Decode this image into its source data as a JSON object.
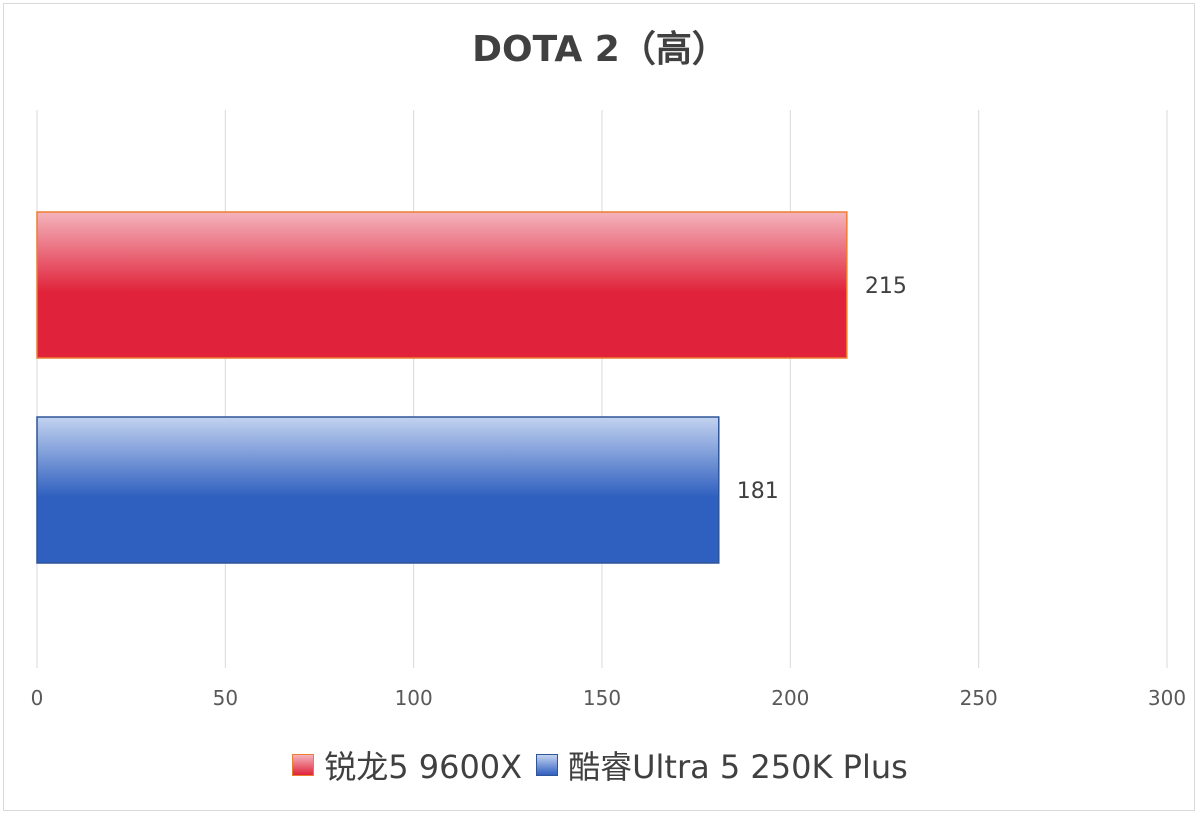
{
  "chart_data": {
    "type": "bar",
    "orientation": "horizontal",
    "title": "DOTA 2（高）",
    "xlim": [
      0,
      300
    ],
    "xticks": [
      "0",
      "50",
      "100",
      "150",
      "200",
      "250",
      "300"
    ],
    "grid": "vertical",
    "legend_position": "bottom",
    "series": [
      {
        "name": "锐龙5 9600X",
        "value": 215,
        "label": "215",
        "color": "#e0233a",
        "light": "#f4b4bd",
        "border": "#ed7d31"
      },
      {
        "name": "酷睿Ultra 5 250K Plus",
        "value": 181,
        "label": "181",
        "color": "#2f5fbf",
        "light": "#c3d3f0",
        "border": "#2f5597"
      }
    ]
  }
}
